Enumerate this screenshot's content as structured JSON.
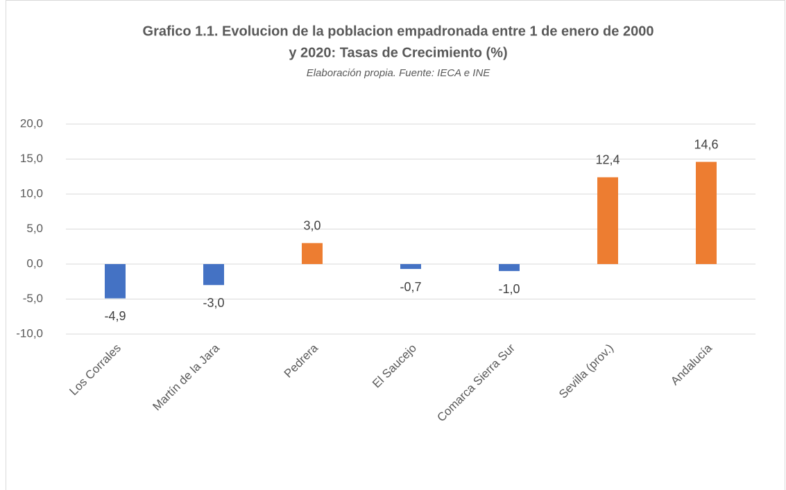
{
  "chart_data": {
    "type": "bar",
    "title": [
      "Grafico 1.1. Evolucion de la poblacion empadronada entre 1 de enero de 2000",
      "y 2020: Tasas de Crecimiento (%)"
    ],
    "subtitle": "Elaboración propia. Fuente: IECA e INE",
    "categories": [
      "Los Corrales",
      "Martín de la Jara",
      "Pedrera",
      "El Saucejo",
      "Comarca Sierra Sur",
      "Sevilla (prov.)",
      "Andalucía"
    ],
    "values": [
      -4.9,
      -3.0,
      3.0,
      -0.7,
      -1.0,
      12.4,
      14.6
    ],
    "value_labels": [
      "-4,9",
      "-3,0",
      "3,0",
      "-0,7",
      "-1,0",
      "12,4",
      "14,6"
    ],
    "colors": [
      "#4472c4",
      "#4472c4",
      "#ed7d31",
      "#4472c4",
      "#4472c4",
      "#ed7d31",
      "#ed7d31"
    ],
    "ylim": [
      -10,
      20
    ],
    "yticks": [
      {
        "value": -10,
        "label": "-10,0"
      },
      {
        "value": -5,
        "label": "-5,0"
      },
      {
        "value": 0,
        "label": "0,0"
      },
      {
        "value": 5,
        "label": "5,0"
      },
      {
        "value": 10,
        "label": "10,0"
      },
      {
        "value": 15,
        "label": "15,0"
      },
      {
        "value": 20,
        "label": "20,0"
      }
    ],
    "grid": true
  }
}
